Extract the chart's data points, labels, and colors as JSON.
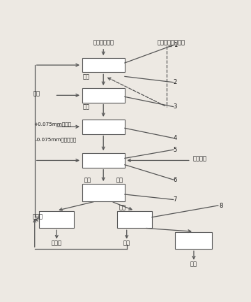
{
  "bg_color": "#ede9e3",
  "box_fc": "#ffffff",
  "box_ec": "#555555",
  "lc": "#555555",
  "tc": "#111111",
  "title1": "煤炭洗选尾矿",
  "title2": "煤炭洗选尾矿矿浆",
  "fs": 6.0,
  "fs_sm": 5.2,
  "lw": 0.9,
  "b1": [
    0.26,
    0.845,
    0.22,
    0.062
  ],
  "b2": [
    0.26,
    0.715,
    0.22,
    0.062
  ],
  "b3": [
    0.26,
    0.58,
    0.22,
    0.062
  ],
  "b4": [
    0.26,
    0.435,
    0.22,
    0.062
  ],
  "b5": [
    0.26,
    0.29,
    0.22,
    0.075
  ],
  "b6": [
    0.04,
    0.175,
    0.18,
    0.072
  ],
  "b7": [
    0.44,
    0.175,
    0.18,
    0.072
  ],
  "b8": [
    0.74,
    0.085,
    0.19,
    0.072
  ]
}
